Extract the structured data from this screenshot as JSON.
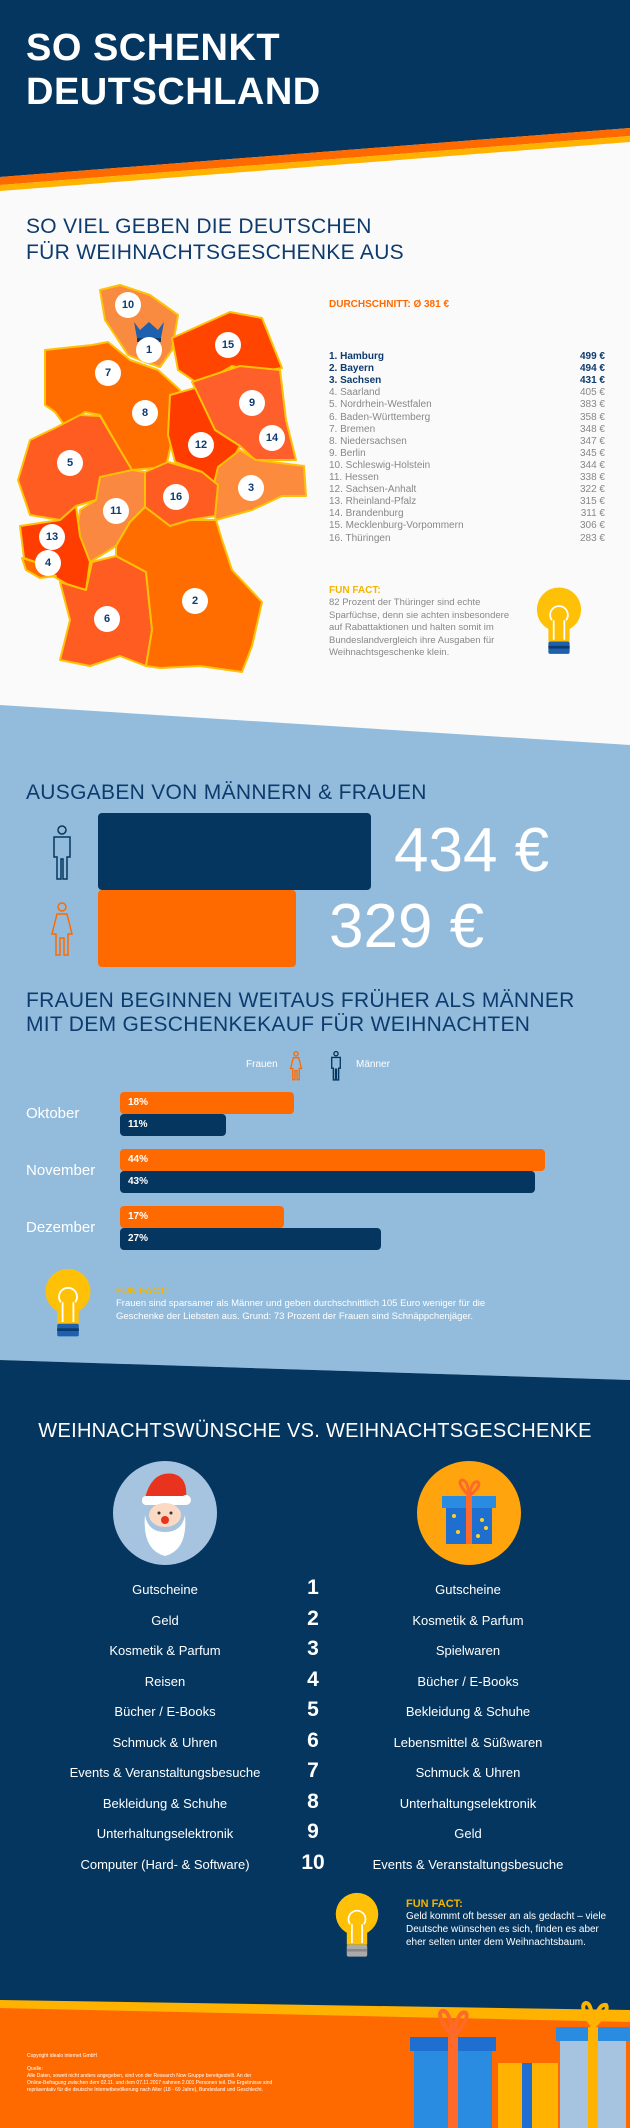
{
  "header": {
    "title_line1": "SO SCHENKT",
    "title_line2": "DEUTSCHLAND"
  },
  "states_section": {
    "title_line1": "SO VIEL GEBEN DIE DEUTSCHEN",
    "title_line2": "FÜR WEIHNACHTSGESCHENKE AUS",
    "average": "DURCHSCHNITT: Ø 381 €",
    "map_badges": [
      "1",
      "2",
      "3",
      "4",
      "5",
      "6",
      "7",
      "8",
      "9",
      "10",
      "11",
      "12",
      "13",
      "14",
      "15",
      "16"
    ],
    "ranking": [
      {
        "name": "1. Hamburg",
        "value": "499 €"
      },
      {
        "name": "2. Bayern",
        "value": "494 €"
      },
      {
        "name": "3. Sachsen",
        "value": "431 €"
      },
      {
        "name": "4. Saarland",
        "value": "405 €"
      },
      {
        "name": "5. Nordrhein-Westfalen",
        "value": "383 €"
      },
      {
        "name": "6. Baden-Württemberg",
        "value": "358 €"
      },
      {
        "name": "7. Bremen",
        "value": "348 €"
      },
      {
        "name": "8. Niedersachsen",
        "value": "347 €"
      },
      {
        "name": "9. Berlin",
        "value": "345 €"
      },
      {
        "name": "10. Schleswig-Holstein",
        "value": "344 €"
      },
      {
        "name": "11. Hessen",
        "value": "338 €"
      },
      {
        "name": "12. Sachsen-Anhalt",
        "value": "322 €"
      },
      {
        "name": "13. Rheinland-Pfalz",
        "value": "315 €"
      },
      {
        "name": "14. Brandenburg",
        "value": "311 €"
      },
      {
        "name": "15. Mecklenburg-Vorpommern",
        "value": "306 €"
      },
      {
        "name": "16. Thüringen",
        "value": "283 €"
      }
    ],
    "fun_fact_title": "FUN FACT:",
    "fun_fact_lines": [
      "82 Prozent der Thüringer sind echte",
      "Sparfüchse, denn sie achten insbesondere",
      "auf Rabattaktionen und halten somit im",
      "Bundeslandvergleich ihre Ausgaben für",
      "Weihnachtsgeschenke klein."
    ]
  },
  "gender_section": {
    "title": "AUSGABEN VON MÄNNERN & FRAUEN",
    "men_value": "434 €",
    "women_value": "329 €",
    "men_amount": 434,
    "women_amount": 329,
    "timing_title_line1": "FRAUEN BEGINNEN WEITAUS FRÜHER ALS MÄNNER",
    "timing_title_line2": "MIT DEM GESCHENKEKAUF FÜR WEIHNACHTEN",
    "legend_women": "Frauen",
    "legend_men": "Männer",
    "fun_fact_title": "FUN FACT:",
    "fun_fact_lines": [
      "Frauen sind sparsamer als Männer und geben durchschnittlich 105 Euro weniger für die",
      "Geschenke der Liebsten aus. Grund: 73 Prozent der Frauen sind Schnäppchenjäger."
    ]
  },
  "chart_data": {
    "type": "bar",
    "title": "FRAUEN BEGINNEN WEITAUS FRÜHER ALS MÄNNER MIT DEM GESCHENKEKAUF FÜR WEIHNACHTEN",
    "categories": [
      "Oktober",
      "November",
      "Dezember"
    ],
    "series": [
      {
        "name": "Frauen",
        "values": [
          18,
          44,
          17
        ],
        "labels": [
          "18%",
          "44%",
          "17%"
        ],
        "color": "#ff6a00"
      },
      {
        "name": "Männer",
        "values": [
          11,
          43,
          27
        ],
        "labels": [
          "11%",
          "43%",
          "27%"
        ],
        "color": "#05365f"
      }
    ],
    "orientation": "horizontal",
    "unit": "%",
    "legend": "top-center"
  },
  "wishes_section": {
    "title": "WEIHNACHTSWÜNSCHE VS. WEIHNACHTSGESCHENKE",
    "rows": [
      {
        "rank": "1",
        "wish": "Gutscheine",
        "gift": "Gutscheine"
      },
      {
        "rank": "2",
        "wish": "Geld",
        "gift": "Kosmetik & Parfum"
      },
      {
        "rank": "3",
        "wish": "Kosmetik & Parfum",
        "gift": "Spielwaren"
      },
      {
        "rank": "4",
        "wish": "Reisen",
        "gift": "Bücher / E-Books"
      },
      {
        "rank": "5",
        "wish": "Bücher / E-Books",
        "gift": "Bekleidung & Schuhe"
      },
      {
        "rank": "6",
        "wish": "Schmuck & Uhren",
        "gift": "Lebensmittel & Süßwaren"
      },
      {
        "rank": "7",
        "wish": "Events & Veranstaltungsbesuche",
        "gift": "Schmuck & Uhren"
      },
      {
        "rank": "8",
        "wish": "Bekleidung & Schuhe",
        "gift": "Unterhaltungselektronik"
      },
      {
        "rank": "9",
        "wish": "Unterhaltungselektronik",
        "gift": "Geld"
      },
      {
        "rank": "10",
        "wish": "Computer (Hard- & Software)",
        "gift": "Events & Veranstaltungsbesuche"
      }
    ],
    "fun_fact_title": "FUN FACT:",
    "fun_fact_lines": [
      "Geld kommt oft besser an als gedacht – viele",
      "Deutsche wünschen es sich, finden es aber",
      "eher selten unter dem Weihnachtsbaum."
    ]
  },
  "footer": {
    "copyright": "Copyright idealo internet GmbH",
    "source_label": "Quelle:",
    "source_lines": [
      "Alle Daten, soweit nicht anders angegeben, sind von der Research Now Gruppe bereitgestellt. An der",
      "Online-Befragung zwischen dem 02.11. und dem 07.11.2017 nahmen 2.001 Personen teil. Die Ergebnisse sind",
      "repräsentativ für die deutsche Internetbevölkerung nach Alter (18 - 69 Jahre), Bundesland und Geschlecht."
    ]
  },
  "colors": {
    "navy": "#05365f",
    "orange": "#ff6a00",
    "yellow": "#ffc000",
    "light_blue": "#93bcdc",
    "dark_blue": "#0d3b6e"
  }
}
